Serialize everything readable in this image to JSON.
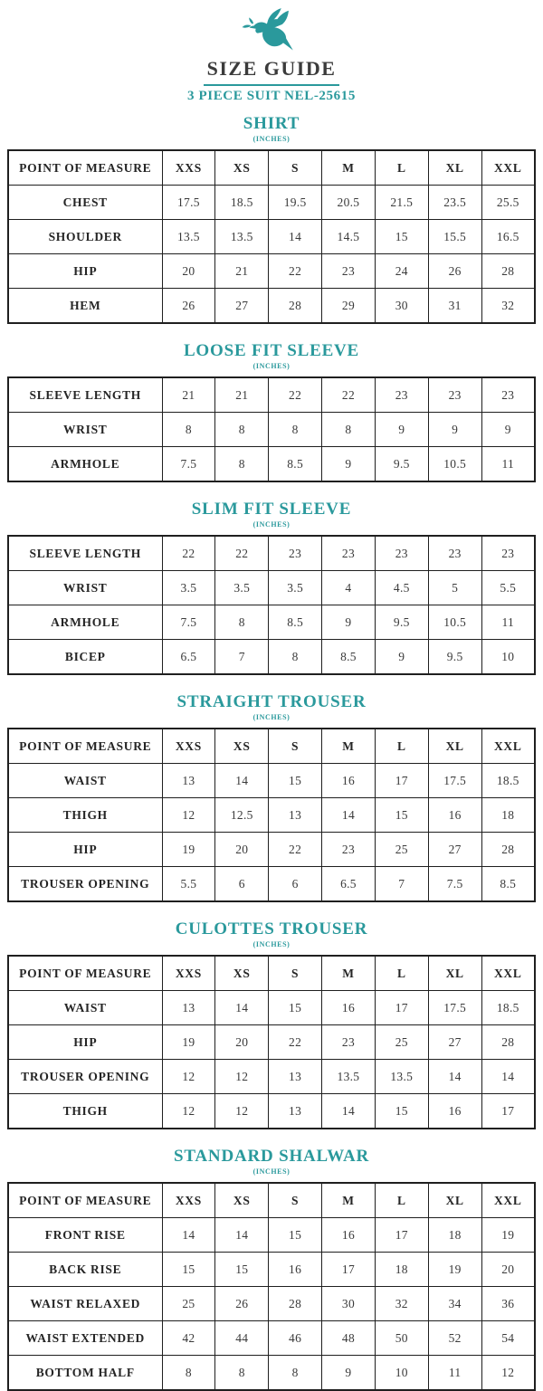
{
  "header": {
    "logo": "dove-icon",
    "title": "SIZE GUIDE",
    "subtitle": "3 PIECE SUIT NEL-25615"
  },
  "unit_label": "(INCHES)",
  "table_header": {
    "label": "POINT OF MEASURE",
    "sizes": [
      "XXS",
      "XS",
      "S",
      "M",
      "L",
      "XL",
      "XXL"
    ]
  },
  "colors": {
    "accent": "#2a999c",
    "title_text": "#3b3b3b",
    "table_border": "#1f1f1f"
  },
  "sections": [
    {
      "title": "SHIRT",
      "show_header": true,
      "rows": [
        {
          "label": "CHEST",
          "values": [
            "17.5",
            "18.5",
            "19.5",
            "20.5",
            "21.5",
            "23.5",
            "25.5"
          ]
        },
        {
          "label": "SHOULDER",
          "values": [
            "13.5",
            "13.5",
            "14",
            "14.5",
            "15",
            "15.5",
            "16.5"
          ]
        },
        {
          "label": "HIP",
          "values": [
            "20",
            "21",
            "22",
            "23",
            "24",
            "26",
            "28"
          ]
        },
        {
          "label": "HEM",
          "values": [
            "26",
            "27",
            "28",
            "29",
            "30",
            "31",
            "32"
          ]
        }
      ]
    },
    {
      "title": "LOOSE FIT SLEEVE",
      "show_header": false,
      "rows": [
        {
          "label": "SLEEVE LENGTH",
          "values": [
            "21",
            "21",
            "22",
            "22",
            "23",
            "23",
            "23"
          ]
        },
        {
          "label": "WRIST",
          "values": [
            "8",
            "8",
            "8",
            "8",
            "9",
            "9",
            "9"
          ]
        },
        {
          "label": "ARMHOLE",
          "values": [
            "7.5",
            "8",
            "8.5",
            "9",
            "9.5",
            "10.5",
            "11"
          ]
        }
      ]
    },
    {
      "title": "SLIM FIT SLEEVE",
      "show_header": false,
      "rows": [
        {
          "label": "SLEEVE LENGTH",
          "values": [
            "22",
            "22",
            "23",
            "23",
            "23",
            "23",
            "23"
          ]
        },
        {
          "label": "WRIST",
          "values": [
            "3.5",
            "3.5",
            "3.5",
            "4",
            "4.5",
            "5",
            "5.5"
          ]
        },
        {
          "label": "ARMHOLE",
          "values": [
            "7.5",
            "8",
            "8.5",
            "9",
            "9.5",
            "10.5",
            "11"
          ]
        },
        {
          "label": "BICEP",
          "values": [
            "6.5",
            "7",
            "8",
            "8.5",
            "9",
            "9.5",
            "10"
          ]
        }
      ]
    },
    {
      "title": "STRAIGHT TROUSER",
      "show_header": true,
      "rows": [
        {
          "label": "WAIST",
          "values": [
            "13",
            "14",
            "15",
            "16",
            "17",
            "17.5",
            "18.5"
          ]
        },
        {
          "label": "THIGH",
          "values": [
            "12",
            "12.5",
            "13",
            "14",
            "15",
            "16",
            "18"
          ]
        },
        {
          "label": "HIP",
          "values": [
            "19",
            "20",
            "22",
            "23",
            "25",
            "27",
            "28"
          ]
        },
        {
          "label": "TROUSER OPENING",
          "values": [
            "5.5",
            "6",
            "6",
            "6.5",
            "7",
            "7.5",
            "8.5"
          ]
        }
      ]
    },
    {
      "title": "CULOTTES TROUSER",
      "show_header": true,
      "rows": [
        {
          "label": "WAIST",
          "values": [
            "13",
            "14",
            "15",
            "16",
            "17",
            "17.5",
            "18.5"
          ]
        },
        {
          "label": "HIP",
          "values": [
            "19",
            "20",
            "22",
            "23",
            "25",
            "27",
            "28"
          ]
        },
        {
          "label": "TROUSER OPENING",
          "values": [
            "12",
            "12",
            "13",
            "13.5",
            "13.5",
            "14",
            "14"
          ]
        },
        {
          "label": "THIGH",
          "values": [
            "12",
            "12",
            "13",
            "14",
            "15",
            "16",
            "17"
          ]
        }
      ]
    },
    {
      "title": "STANDARD SHALWAR",
      "show_header": true,
      "rows": [
        {
          "label": "FRONT RISE",
          "values": [
            "14",
            "14",
            "15",
            "16",
            "17",
            "18",
            "19"
          ]
        },
        {
          "label": "BACK RISE",
          "values": [
            "15",
            "15",
            "16",
            "17",
            "18",
            "19",
            "20"
          ]
        },
        {
          "label": "WAIST RELAXED",
          "values": [
            "25",
            "26",
            "28",
            "30",
            "32",
            "34",
            "36"
          ]
        },
        {
          "label": "WAIST EXTENDED",
          "values": [
            "42",
            "44",
            "46",
            "48",
            "50",
            "52",
            "54"
          ]
        },
        {
          "label": "BOTTOM HALF",
          "values": [
            "8",
            "8",
            "8",
            "9",
            "10",
            "11",
            "12"
          ]
        }
      ]
    }
  ]
}
